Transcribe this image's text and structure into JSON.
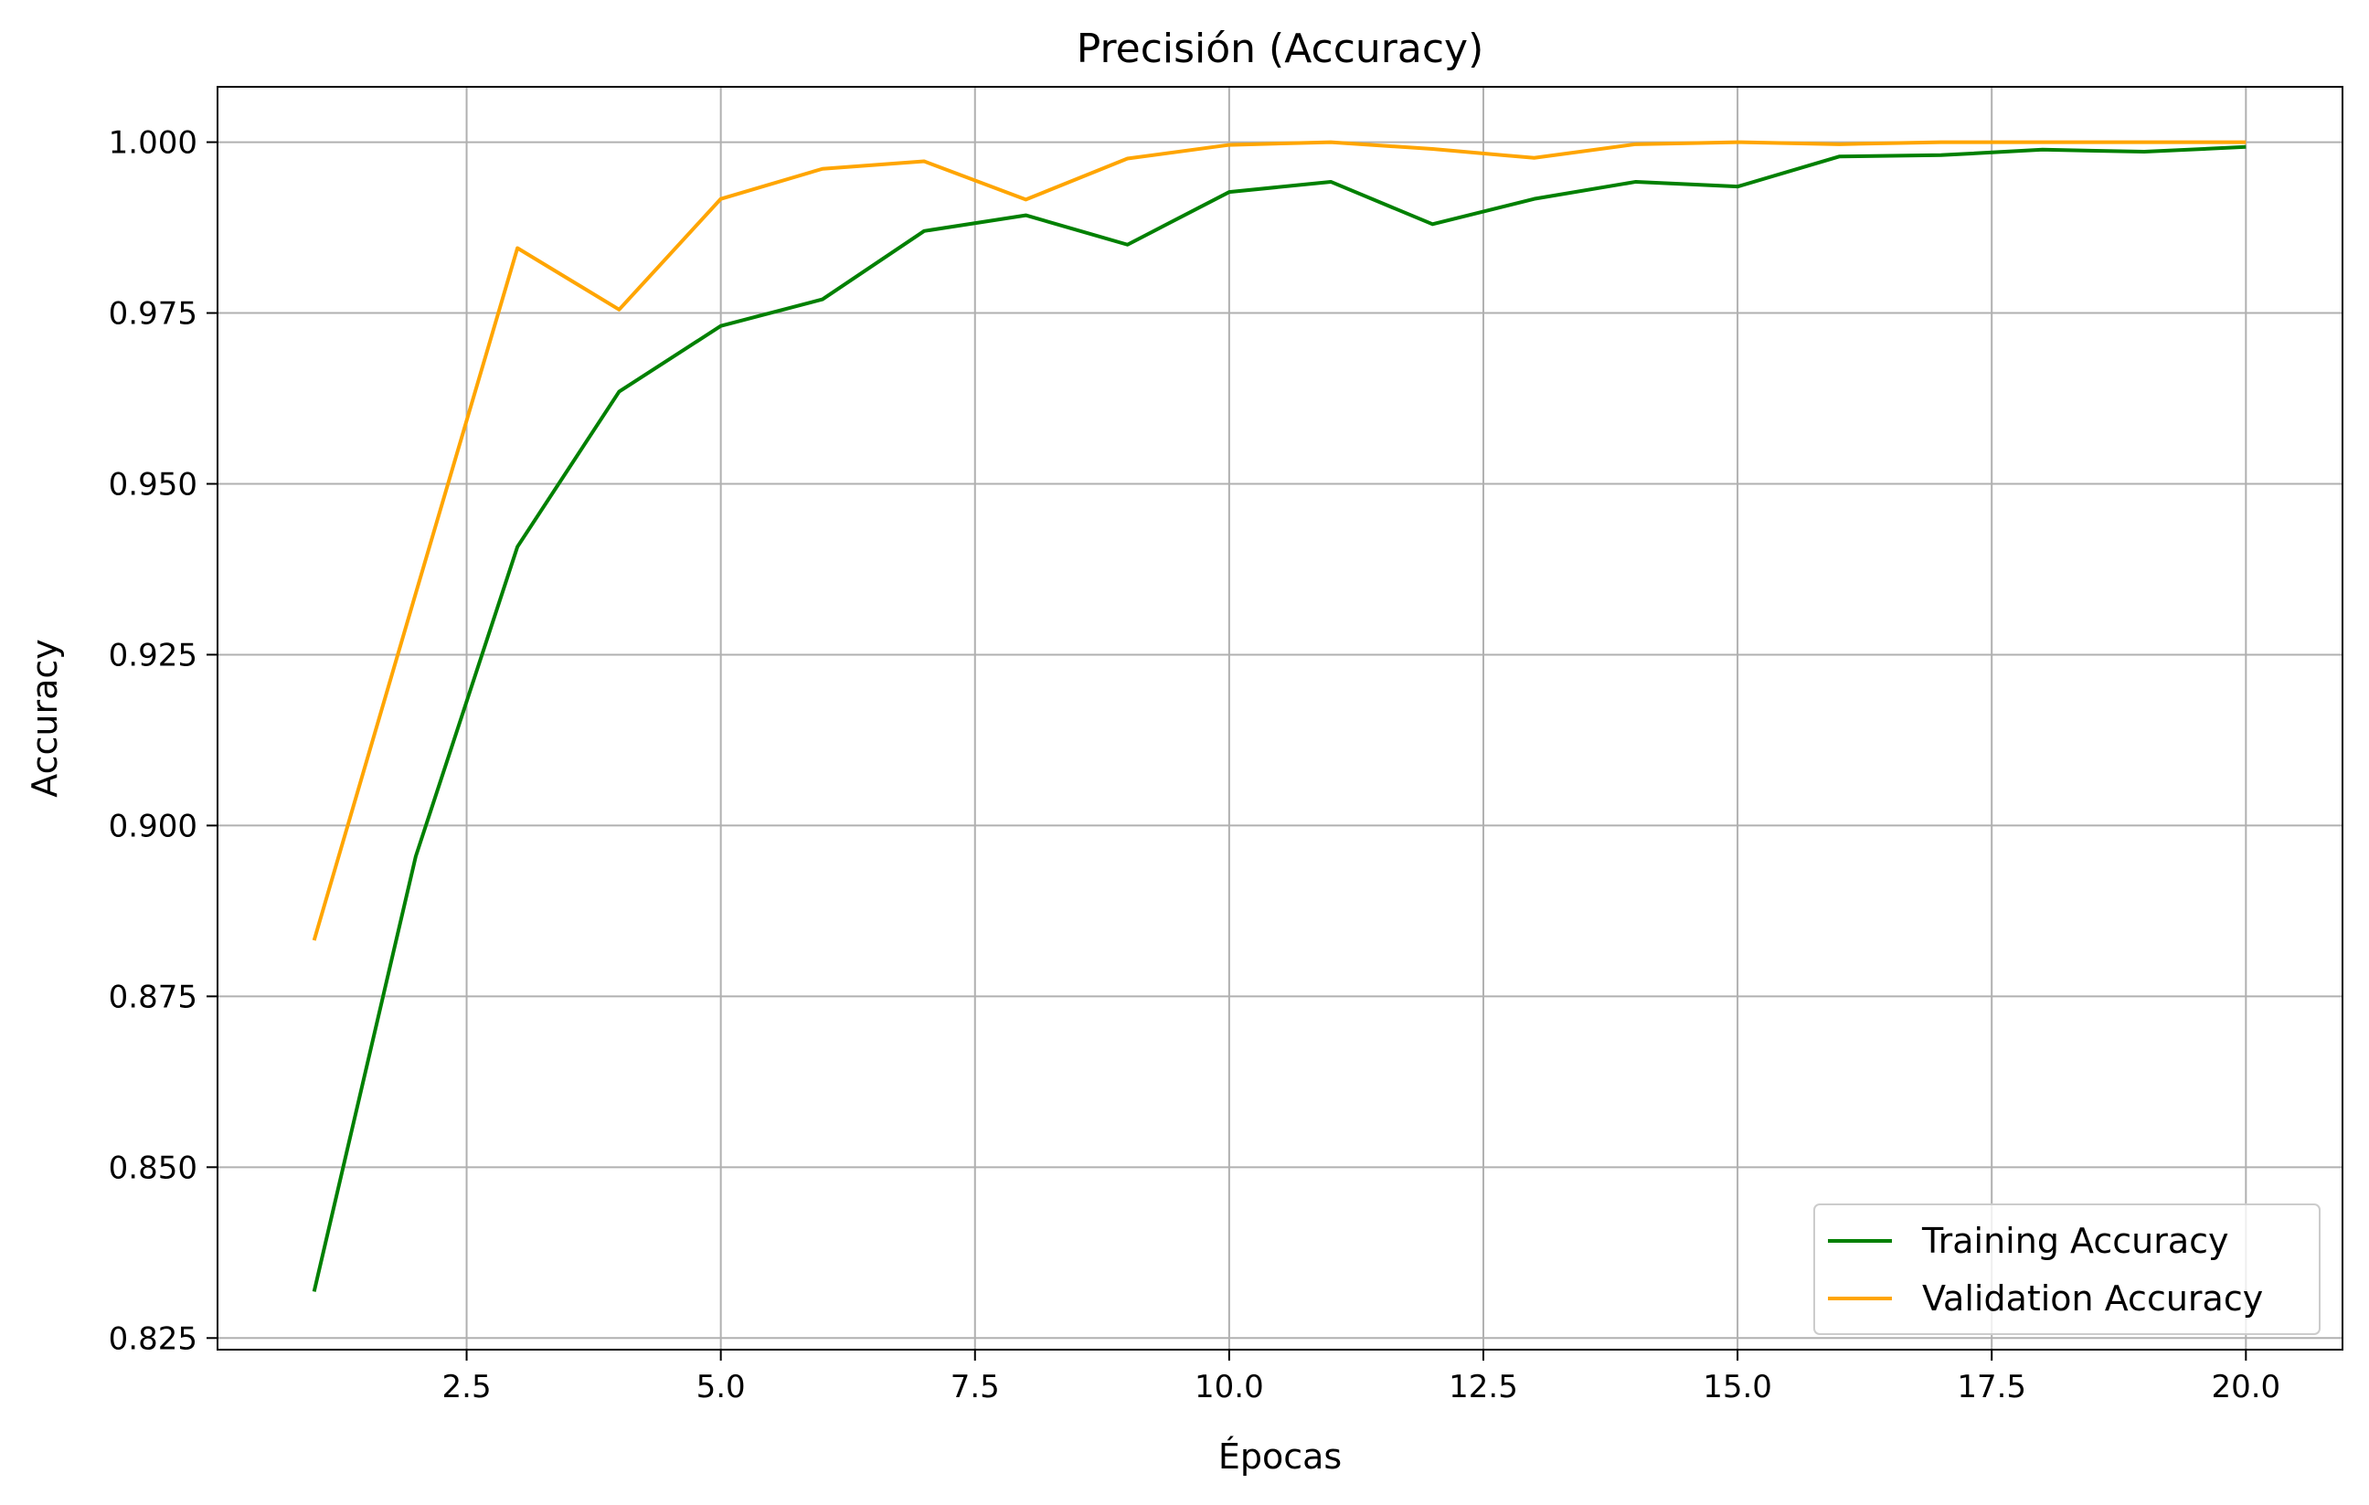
{
  "chart_data": {
    "type": "line",
    "title": "Precisión (Accuracy)",
    "xlabel": "Épocas",
    "ylabel": "Accuracy",
    "x": [
      1,
      2,
      3,
      4,
      5,
      6,
      7,
      8,
      9,
      10,
      11,
      12,
      13,
      14,
      15,
      16,
      17,
      18,
      19,
      20
    ],
    "series": [
      {
        "name": "Training Accuracy",
        "color": "#008000",
        "values": [
          0.8318,
          0.8955,
          0.9408,
          0.9635,
          0.9731,
          0.977,
          0.987,
          0.9893,
          0.985,
          0.9927,
          0.9942,
          0.988,
          0.9917,
          0.9942,
          0.9935,
          0.9979,
          0.9981,
          0.9989,
          0.9986,
          0.9993
        ]
      },
      {
        "name": "Validation Accuracy",
        "color": "#ffa500",
        "values": [
          0.8832,
          0.934,
          0.9845,
          0.9755,
          0.9917,
          0.9961,
          0.9972,
          0.9916,
          0.9976,
          0.9996,
          1.0,
          0.999,
          0.9977,
          0.9997,
          1.0,
          0.9997,
          1.0,
          1.0,
          1.0,
          1.0
        ]
      }
    ],
    "xlim": [
      0.05,
      20.95
    ],
    "ylim": [
      0.8233,
      1.0081
    ],
    "xticks": [
      2.5,
      5.0,
      7.5,
      10.0,
      12.5,
      15.0,
      17.5,
      20.0
    ],
    "xtick_labels": [
      "2.5",
      "5.0",
      "7.5",
      "10.0",
      "12.5",
      "15.0",
      "17.5",
      "20.0"
    ],
    "yticks": [
      0.825,
      0.85,
      0.875,
      0.9,
      0.925,
      0.95,
      0.975,
      1.0
    ],
    "ytick_labels": [
      "0.825",
      "0.850",
      "0.875",
      "0.900",
      "0.925",
      "0.950",
      "0.975",
      "1.000"
    ],
    "grid": true,
    "legend_position": "lower-right"
  }
}
